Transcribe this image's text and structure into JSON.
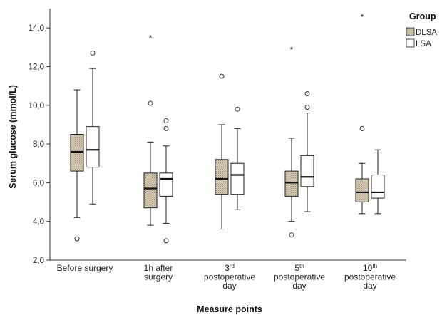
{
  "chart_data": {
    "type": "boxplot",
    "xlabel": "Measure points",
    "ylabel": "Serum glucose (mmol/L)",
    "ylim": [
      2.0,
      15.0
    ],
    "yticks": [
      "2,0",
      "4,0",
      "6,0",
      "8,0",
      "10,0",
      "12,0",
      "14,0"
    ],
    "ytick_values": [
      2,
      4,
      6,
      8,
      10,
      12,
      14
    ],
    "grid": false,
    "legend": {
      "title": "Group",
      "position": "top-right",
      "entries": [
        {
          "label": "DLSA",
          "pattern": "dotted",
          "color": "#d9cdb8"
        },
        {
          "label": "LSA",
          "pattern": "solid",
          "color": "#ffffff"
        }
      ]
    },
    "categories": [
      {
        "lines": [
          {
            "text": "Before surgery"
          }
        ]
      },
      {
        "lines": [
          {
            "text": "1h after"
          },
          {
            "text": "surgery"
          }
        ]
      },
      {
        "lines": [
          {
            "text": "3",
            "sup": "rd"
          },
          {
            "text": "postoperative"
          },
          {
            "text": "day"
          }
        ]
      },
      {
        "lines": [
          {
            "text": "5",
            "sup": "th"
          },
          {
            "text": "postoperative"
          },
          {
            "text": "day"
          }
        ]
      },
      {
        "lines": [
          {
            "text": "10",
            "sup": "th"
          },
          {
            "text": "postoperative"
          },
          {
            "text": "day"
          }
        ]
      }
    ],
    "series": [
      {
        "name": "DLSA",
        "boxes": [
          {
            "whisker_low": 4.2,
            "q1": 6.6,
            "median": 7.6,
            "q3": 8.5,
            "whisker_high": 10.8,
            "outliers": [
              3.1
            ],
            "extremes": []
          },
          {
            "whisker_low": 3.8,
            "q1": 4.7,
            "median": 5.7,
            "q3": 6.5,
            "whisker_high": 8.1,
            "outliers": [
              10.1
            ],
            "extremes": [
              13.5
            ]
          },
          {
            "whisker_low": 3.6,
            "q1": 5.4,
            "median": 6.2,
            "q3": 7.2,
            "whisker_high": 9.0,
            "outliers": [
              11.5
            ],
            "extremes": []
          },
          {
            "whisker_low": 4.0,
            "q1": 5.3,
            "median": 6.0,
            "q3": 6.6,
            "whisker_high": 8.3,
            "outliers": [
              3.3
            ],
            "extremes": [
              12.9
            ]
          },
          {
            "whisker_low": 4.4,
            "q1": 5.0,
            "median": 5.5,
            "q3": 6.2,
            "whisker_high": 7.0,
            "outliers": [
              8.8
            ],
            "extremes": [
              14.6
            ]
          }
        ]
      },
      {
        "name": "LSA",
        "boxes": [
          {
            "whisker_low": 4.9,
            "q1": 6.8,
            "median": 7.7,
            "q3": 8.9,
            "whisker_high": 11.9,
            "outliers": [
              12.7
            ],
            "extremes": []
          },
          {
            "whisker_low": 3.9,
            "q1": 5.3,
            "median": 6.2,
            "q3": 6.5,
            "whisker_high": 7.9,
            "outliers": [
              8.8,
              9.2,
              3.0
            ],
            "extremes": []
          },
          {
            "whisker_low": 4.6,
            "q1": 5.4,
            "median": 6.4,
            "q3": 7.0,
            "whisker_high": 8.8,
            "outliers": [
              9.8
            ],
            "extremes": []
          },
          {
            "whisker_low": 4.5,
            "q1": 5.8,
            "median": 6.3,
            "q3": 7.4,
            "whisker_high": 9.6,
            "outliers": [
              9.9,
              10.6
            ],
            "extremes": []
          },
          {
            "whisker_low": 4.4,
            "q1": 5.2,
            "median": 5.5,
            "q3": 6.4,
            "whisker_high": 7.7,
            "outliers": [],
            "extremes": []
          }
        ]
      }
    ]
  }
}
